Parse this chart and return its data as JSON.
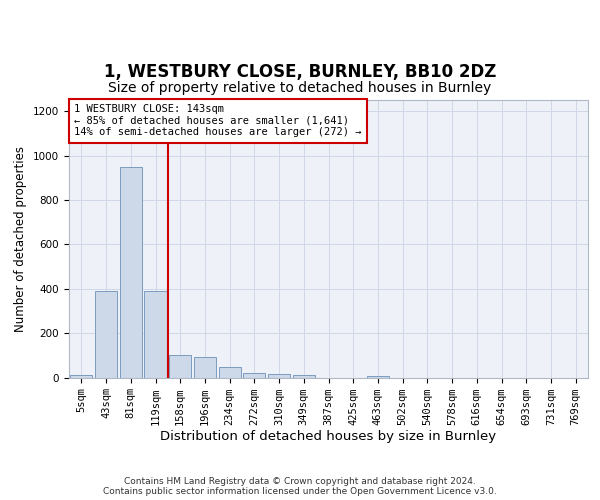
{
  "title1": "1, WESTBURY CLOSE, BURNLEY, BB10 2DZ",
  "title2": "Size of property relative to detached houses in Burnley",
  "xlabel": "Distribution of detached houses by size in Burnley",
  "ylabel": "Number of detached properties",
  "categories": [
    "5sqm",
    "43sqm",
    "81sqm",
    "119sqm",
    "158sqm",
    "196sqm",
    "234sqm",
    "272sqm",
    "310sqm",
    "349sqm",
    "387sqm",
    "425sqm",
    "463sqm",
    "502sqm",
    "540sqm",
    "578sqm",
    "616sqm",
    "654sqm",
    "693sqm",
    "731sqm",
    "769sqm"
  ],
  "values": [
    10,
    390,
    950,
    390,
    100,
    93,
    48,
    20,
    18,
    10,
    0,
    0,
    5,
    0,
    0,
    0,
    0,
    0,
    0,
    0,
    0
  ],
  "bar_color": "#cdd9e8",
  "bar_edge_color": "#7a9cbf",
  "red_line_x": 3.5,
  "annotation_text": "1 WESTBURY CLOSE: 143sqm\n← 85% of detached houses are smaller (1,641)\n14% of semi-detached houses are larger (272) →",
  "annotation_box_color": "#ffffff",
  "annotation_box_edge": "#cc0000",
  "red_line_color": "#cc0000",
  "grid_color": "#d0d8e8",
  "background_color": "#eef2f8",
  "ylim": [
    0,
    1250
  ],
  "yticks": [
    0,
    200,
    400,
    600,
    800,
    1000,
    1200
  ],
  "footer1": "Contains HM Land Registry data © Crown copyright and database right 2024.",
  "footer2": "Contains public sector information licensed under the Open Government Licence v3.0.",
  "title1_fontsize": 12,
  "title2_fontsize": 10,
  "tick_fontsize": 7.5,
  "ylabel_fontsize": 8.5,
  "xlabel_fontsize": 9.5,
  "footer_fontsize": 6.5
}
